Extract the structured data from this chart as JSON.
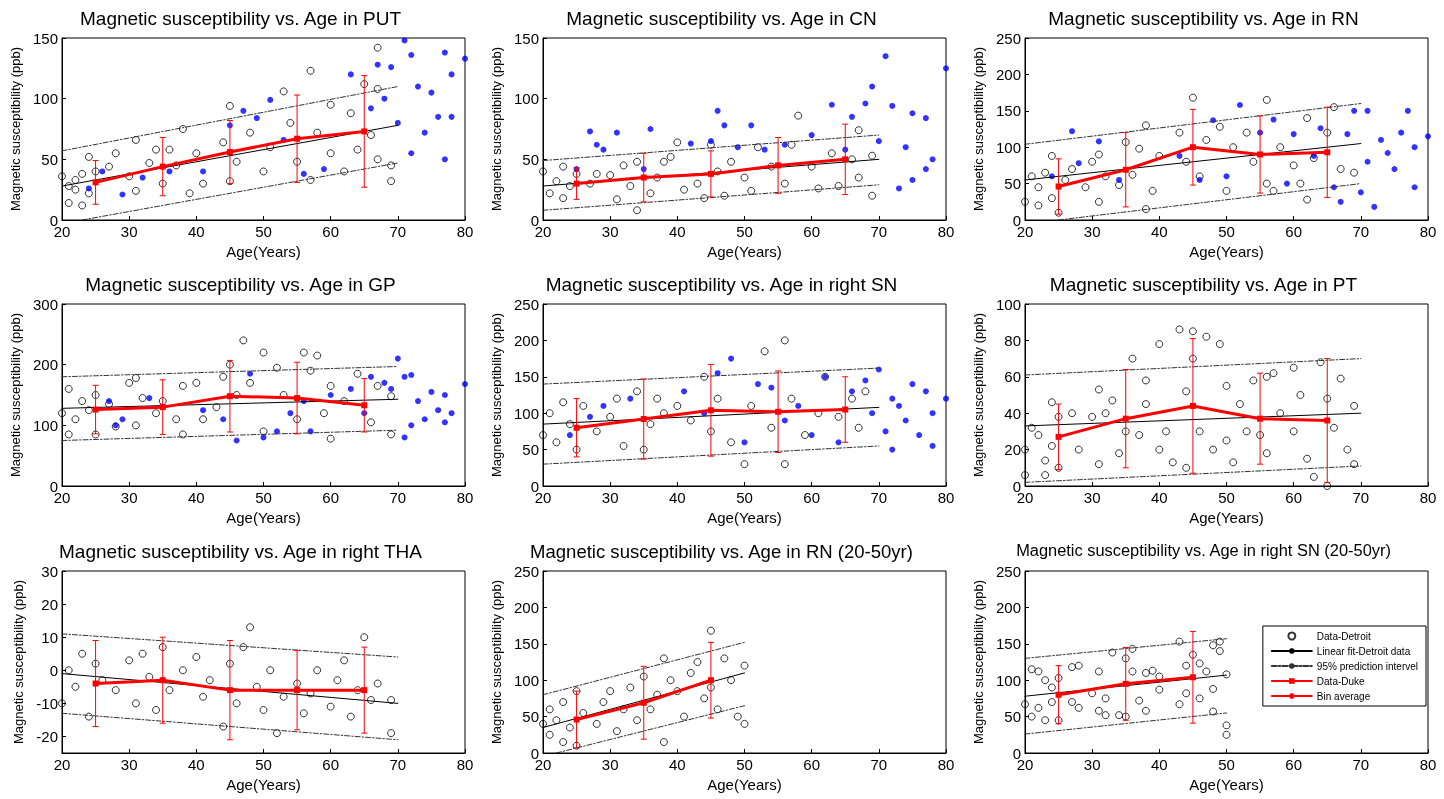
{
  "chart_data": [
    {
      "type": "scatter",
      "title": "Magnetic susceptibility vs. Age in PUT",
      "xlabel": "Age(Years)",
      "ylabel": "Magnetic susceptibility (ppb)",
      "xlim": [
        20,
        80
      ],
      "xticks": [
        20,
        30,
        40,
        50,
        60,
        70,
        80
      ],
      "ylim": [
        0,
        150
      ],
      "yticks": [
        0,
        50,
        100,
        150
      ],
      "grid": false,
      "legend": false,
      "series": [
        {
          "type": "scatter",
          "marker": "circle",
          "color": "#000000",
          "x": [
            20,
            21,
            21,
            22,
            22,
            23,
            23,
            24,
            24,
            25,
            27,
            28,
            30,
            31,
            31,
            33,
            34,
            35,
            36,
            37,
            38,
            39,
            40,
            41,
            44,
            45,
            45,
            46,
            48,
            50,
            51,
            53,
            54,
            55,
            57,
            57,
            58,
            60,
            60,
            62,
            63,
            64,
            65,
            66,
            67,
            67,
            67,
            69,
            69
          ],
          "values": [
            36,
            28,
            14,
            25,
            33,
            12,
            38,
            52,
            22,
            40,
            44,
            55,
            36,
            66,
            24,
            47,
            58,
            30,
            58,
            45,
            75,
            22,
            55,
            30,
            64,
            94,
            32,
            48,
            72,
            40,
            60,
            106,
            80,
            48,
            123,
            33,
            72,
            95,
            55,
            40,
            88,
            58,
            112,
            70,
            142,
            108,
            50,
            45,
            32
          ]
        },
        {
          "type": "scatter",
          "marker": "circle",
          "color": "#0000ff",
          "x": [
            24,
            26,
            29,
            32,
            36,
            41,
            45,
            47,
            49,
            51,
            53,
            56,
            59,
            63,
            66,
            67,
            68,
            69,
            70,
            71,
            72,
            72,
            73,
            74,
            75,
            76,
            77,
            77,
            78,
            78,
            80
          ],
          "values": [
            26,
            40,
            21,
            35,
            40,
            40,
            78,
            90,
            84,
            99,
            66,
            38,
            42,
            120,
            92,
            128,
            100,
            126,
            80,
            148,
            136,
            55,
            110,
            72,
            105,
            85,
            138,
            50,
            120,
            85,
            133
          ]
        },
        {
          "type": "line",
          "marker": "none",
          "line_style": "solid",
          "color": "#000000",
          "x": [
            20,
            70
          ],
          "values": [
            28,
            78
          ]
        },
        {
          "type": "line",
          "marker": "none",
          "line_style": "dashed",
          "color": "#333333",
          "x": [
            20,
            70
          ],
          "values": [
            57,
            110
          ]
        },
        {
          "type": "line",
          "marker": "none",
          "line_style": "dashed",
          "color": "#333333",
          "x": [
            23,
            70
          ],
          "values": [
            0,
            47
          ]
        },
        {
          "type": "line",
          "marker": "square",
          "line_style": "solid",
          "color": "#ff0000",
          "x": [
            25,
            35,
            45,
            55,
            65
          ],
          "values": [
            31,
            44,
            56,
            67,
            73
          ],
          "errors": [
            18,
            24,
            26,
            36,
            46
          ]
        }
      ]
    },
    {
      "type": "scatter",
      "title": "Magnetic susceptibility vs. Age in CN",
      "xlabel": "Age(Years)",
      "ylabel": "Magnetic susceptibility (ppb)",
      "xlim": [
        20,
        80
      ],
      "xticks": [
        20,
        30,
        40,
        50,
        60,
        70,
        80
      ],
      "ylim": [
        0,
        150
      ],
      "yticks": [
        0,
        50,
        100,
        150
      ],
      "grid": false,
      "legend": false,
      "series": [
        {
          "type": "scatter",
          "marker": "circle",
          "color": "#000000",
          "x": [
            20,
            21,
            22,
            23,
            23,
            24,
            25,
            27,
            28,
            30,
            31,
            32,
            33,
            34,
            34,
            36,
            37,
            38,
            39,
            40,
            41,
            43,
            44,
            45,
            46,
            47,
            48,
            50,
            51,
            52,
            54,
            56,
            57,
            58,
            60,
            61,
            63,
            64,
            66,
            67,
            67,
            69,
            69
          ],
          "values": [
            40,
            22,
            32,
            44,
            18,
            28,
            38,
            30,
            38,
            37,
            17,
            45,
            28,
            8,
            48,
            22,
            35,
            48,
            52,
            64,
            25,
            30,
            18,
            62,
            40,
            20,
            48,
            35,
            24,
            60,
            44,
            30,
            62,
            86,
            44,
            26,
            55,
            28,
            50,
            74,
            35,
            20,
            53
          ]
        },
        {
          "type": "scatter",
          "marker": "circle",
          "color": "#0000ff",
          "x": [
            25,
            27,
            28,
            29,
            31,
            35,
            36,
            42,
            45,
            46,
            47,
            49,
            51,
            53,
            56,
            60,
            63,
            65,
            66,
            68,
            69,
            70,
            71,
            72,
            73,
            74,
            75,
            75,
            77,
            77,
            78,
            80
          ],
          "values": [
            42,
            73,
            62,
            58,
            72,
            42,
            75,
            63,
            65,
            90,
            78,
            60,
            78,
            58,
            62,
            70,
            95,
            58,
            85,
            96,
            110,
            65,
            135,
            94,
            26,
            60,
            88,
            33,
            42,
            84,
            50,
            125
          ]
        },
        {
          "type": "line",
          "marker": "none",
          "line_style": "solid",
          "color": "#000000",
          "x": [
            20,
            70
          ],
          "values": [
            28,
            50
          ]
        },
        {
          "type": "line",
          "marker": "none",
          "line_style": "dashed",
          "color": "#333333",
          "x": [
            20,
            70
          ],
          "values": [
            49,
            70
          ]
        },
        {
          "type": "line",
          "marker": "none",
          "line_style": "dashed",
          "color": "#333333",
          "x": [
            20,
            70
          ],
          "values": [
            8,
            29
          ]
        },
        {
          "type": "line",
          "marker": "square",
          "line_style": "solid",
          "color": "#ff0000",
          "x": [
            25,
            35,
            45,
            55,
            65
          ],
          "values": [
            30,
            35,
            38,
            45,
            50
          ],
          "errors": [
            13,
            20,
            19,
            23,
            29
          ]
        }
      ]
    },
    {
      "type": "scatter",
      "title": "Magnetic susceptibility vs. Age in RN",
      "xlabel": "Age(Years)",
      "ylabel": "Magnetic susceptibility (ppb)",
      "xlim": [
        20,
        80
      ],
      "xticks": [
        20,
        30,
        40,
        50,
        60,
        70,
        80
      ],
      "ylim": [
        0,
        250
      ],
      "yticks": [
        0,
        50,
        100,
        150,
        200,
        250
      ],
      "grid": false,
      "legend": false,
      "series": [
        {
          "type": "scatter",
          "marker": "circle",
          "color": "#000000",
          "x": [
            20,
            21,
            22,
            22,
            23,
            24,
            24,
            25,
            26,
            27,
            29,
            30,
            31,
            31,
            32,
            34,
            35,
            36,
            37,
            38,
            38,
            39,
            40,
            43,
            44,
            45,
            46,
            47,
            49,
            50,
            51,
            53,
            54,
            56,
            56,
            57,
            58,
            60,
            61,
            62,
            62,
            63,
            65,
            66,
            67,
            69
          ],
          "values": [
            25,
            60,
            45,
            20,
            65,
            30,
            88,
            10,
            55,
            70,
            45,
            80,
            90,
            25,
            60,
            48,
            107,
            62,
            98,
            130,
            15,
            40,
            88,
            120,
            80,
            168,
            60,
            110,
            128,
            40,
            100,
            120,
            80,
            165,
            50,
            40,
            100,
            75,
            50,
            28,
            140,
            85,
            120,
            155,
            70,
            65
          ]
        },
        {
          "type": "scatter",
          "marker": "circle",
          "color": "#0000ff",
          "x": [
            24,
            27,
            28,
            31,
            34,
            43,
            46,
            48,
            50,
            52,
            55,
            57,
            59,
            60,
            63,
            64,
            66,
            67,
            68,
            69,
            70,
            71,
            71,
            72,
            73,
            74,
            75,
            76,
            77,
            78,
            78,
            80
          ],
          "values": [
            60,
            122,
            78,
            108,
            55,
            88,
            55,
            137,
            60,
            158,
            120,
            138,
            50,
            118,
            88,
            126,
            45,
            25,
            118,
            150,
            38,
            80,
            150,
            18,
            110,
            92,
            70,
            120,
            150,
            100,
            45,
            115
          ]
        },
        {
          "type": "line",
          "marker": "none",
          "line_style": "solid",
          "color": "#000000",
          "x": [
            20,
            70
          ],
          "values": [
            55,
            105
          ]
        },
        {
          "type": "line",
          "marker": "none",
          "line_style": "dashed",
          "color": "#333333",
          "x": [
            20,
            70
          ],
          "values": [
            104,
            160
          ]
        },
        {
          "type": "line",
          "marker": "none",
          "line_style": "dashed",
          "color": "#333333",
          "x": [
            25,
            70
          ],
          "values": [
            0,
            50
          ]
        },
        {
          "type": "line",
          "marker": "square",
          "line_style": "solid",
          "color": "#ff0000",
          "x": [
            25,
            35,
            45,
            55,
            65
          ],
          "values": [
            46,
            69,
            100,
            90,
            93
          ],
          "errors": [
            38,
            51,
            52,
            53,
            62
          ]
        }
      ]
    },
    {
      "type": "scatter",
      "title": "Magnetic susceptibility vs. Age in GP",
      "xlabel": "Age(Years)",
      "ylabel": "Magnetic susceptibility (ppb)",
      "xlim": [
        20,
        80
      ],
      "xticks": [
        20,
        30,
        40,
        50,
        60,
        70,
        80
      ],
      "ylim": [
        0,
        300
      ],
      "yticks": [
        0,
        100,
        200,
        300
      ],
      "grid": false,
      "legend": false,
      "series": [
        {
          "type": "scatter",
          "marker": "circle",
          "color": "#000000",
          "x": [
            20,
            21,
            21,
            22,
            23,
            24,
            25,
            25,
            27,
            28,
            30,
            31,
            31,
            32,
            34,
            35,
            37,
            38,
            38,
            40,
            41,
            43,
            44,
            45,
            46,
            47,
            48,
            50,
            50,
            52,
            53,
            55,
            56,
            57,
            58,
            59,
            60,
            60,
            62,
            64,
            66,
            67,
            69,
            69
          ],
          "values": [
            120,
            85,
            160,
            110,
            140,
            125,
            85,
            150,
            135,
            98,
            170,
            178,
            100,
            145,
            120,
            140,
            110,
            165,
            85,
            170,
            110,
            130,
            180,
            200,
            150,
            240,
            170,
            220,
            90,
            195,
            150,
            110,
            220,
            190,
            215,
            120,
            165,
            78,
            140,
            185,
            105,
            165,
            148,
            85
          ]
        },
        {
          "type": "scatter",
          "marker": "circle",
          "color": "#0000ff",
          "x": [
            27,
            28,
            29,
            33,
            41,
            44,
            46,
            48,
            50,
            52,
            54,
            56,
            57,
            60,
            63,
            65,
            66,
            68,
            69,
            70,
            71,
            71,
            72,
            72,
            73,
            74,
            75,
            76,
            77,
            77,
            78,
            80
          ],
          "values": [
            140,
            100,
            110,
            145,
            125,
            110,
            75,
            185,
            80,
            90,
            120,
            140,
            90,
            150,
            160,
            120,
            180,
            170,
            160,
            210,
            80,
            180,
            100,
            183,
            140,
            110,
            155,
            125,
            105,
            150,
            120,
            168
          ]
        },
        {
          "type": "line",
          "marker": "none",
          "line_style": "solid",
          "color": "#000000",
          "x": [
            20,
            70
          ],
          "values": [
            128,
            143
          ]
        },
        {
          "type": "line",
          "marker": "none",
          "line_style": "dashed",
          "color": "#333333",
          "x": [
            20,
            70
          ],
          "values": [
            180,
            197
          ]
        },
        {
          "type": "line",
          "marker": "none",
          "line_style": "dashed",
          "color": "#333333",
          "x": [
            20,
            70
          ],
          "values": [
            75,
            92
          ]
        },
        {
          "type": "line",
          "marker": "square",
          "line_style": "solid",
          "color": "#ff0000",
          "x": [
            25,
            35,
            45,
            55,
            65
          ],
          "values": [
            126,
            130,
            148,
            145,
            133
          ],
          "errors": [
            40,
            45,
            59,
            59,
            44
          ]
        }
      ]
    },
    {
      "type": "scatter",
      "title": "Magnetic susceptibility vs. Age in right SN",
      "xlabel": "Age(Years)",
      "ylabel": "Magnetic susceptibility (ppb)",
      "xlim": [
        20,
        80
      ],
      "xticks": [
        20,
        30,
        40,
        50,
        60,
        70,
        80
      ],
      "ylim": [
        0,
        250
      ],
      "yticks": [
        0,
        50,
        100,
        150,
        200,
        250
      ],
      "grid": false,
      "legend": false,
      "series": [
        {
          "type": "scatter",
          "marker": "circle",
          "color": "#000000",
          "x": [
            20,
            21,
            22,
            23,
            24,
            25,
            26,
            28,
            30,
            31,
            32,
            34,
            35,
            36,
            37,
            38,
            40,
            42,
            44,
            45,
            46,
            48,
            50,
            51,
            53,
            54,
            56,
            56,
            57,
            59,
            61,
            62,
            64,
            66,
            67,
            68
          ],
          "values": [
            70,
            100,
            60,
            115,
            85,
            50,
            110,
            75,
            95,
            120,
            55,
            130,
            50,
            85,
            120,
            100,
            110,
            90,
            150,
            75,
            120,
            60,
            30,
            110,
            185,
            80,
            200,
            30,
            120,
            70,
            100,
            150,
            95,
            120,
            80,
            130
          ]
        },
        {
          "type": "scatter",
          "marker": "circle",
          "color": "#0000ff",
          "x": [
            24,
            27,
            29,
            33,
            41,
            44,
            46,
            48,
            50,
            52,
            54,
            56,
            58,
            60,
            62,
            64,
            66,
            68,
            69,
            70,
            71,
            72,
            72,
            73,
            74,
            75,
            76,
            77,
            78,
            78,
            80
          ],
          "values": [
            70,
            95,
            110,
            120,
            130,
            100,
            155,
            175,
            60,
            140,
            135,
            90,
            110,
            70,
            150,
            60,
            130,
            145,
            100,
            160,
            75,
            120,
            50,
            110,
            90,
            140,
            70,
            130,
            100,
            55,
            120
          ]
        },
        {
          "type": "line",
          "marker": "none",
          "line_style": "solid",
          "color": "#000000",
          "x": [
            20,
            70
          ],
          "values": [
            85,
            108
          ]
        },
        {
          "type": "line",
          "marker": "none",
          "line_style": "dashed",
          "color": "#333333",
          "x": [
            20,
            70
          ],
          "values": [
            140,
            162
          ]
        },
        {
          "type": "line",
          "marker": "none",
          "line_style": "dashed",
          "color": "#333333",
          "x": [
            20,
            70
          ],
          "values": [
            30,
            55
          ]
        },
        {
          "type": "line",
          "marker": "square",
          "line_style": "solid",
          "color": "#ff0000",
          "x": [
            25,
            35,
            45,
            55,
            65
          ],
          "values": [
            80,
            92,
            104,
            102,
            105
          ],
          "errors": [
            40,
            55,
            63,
            56,
            45
          ]
        }
      ]
    },
    {
      "type": "scatter",
      "title": "Magnetic susceptibility vs. Age in PT",
      "xlabel": "Age(Years)",
      "ylabel": "Magnetic susceptibility (ppb)",
      "xlim": [
        20,
        80
      ],
      "xticks": [
        20,
        30,
        40,
        50,
        60,
        70,
        80
      ],
      "ylim": [
        0,
        100
      ],
      "yticks": [
        0,
        20,
        40,
        60,
        80,
        100
      ],
      "grid": false,
      "legend": false,
      "series": [
        {
          "type": "scatter",
          "marker": "circle",
          "color": "#000000",
          "x": [
            20,
            20,
            21,
            22,
            23,
            23,
            24,
            24,
            25,
            25,
            27,
            28,
            30,
            31,
            31,
            32,
            33,
            34,
            35,
            36,
            37,
            38,
            38,
            40,
            40,
            41,
            42,
            43,
            44,
            44,
            45,
            45,
            46,
            47,
            48,
            49,
            50,
            50,
            51,
            52,
            53,
            54,
            55,
            56,
            56,
            57,
            58,
            60,
            60,
            61,
            62,
            63,
            64,
            65,
            65,
            66,
            67,
            68,
            69,
            69
          ],
          "values": [
            6,
            20,
            32,
            28,
            6,
            14,
            46,
            22,
            10,
            38,
            40,
            20,
            38,
            53,
            12,
            40,
            47,
            18,
            30,
            70,
            28,
            58,
            45,
            78,
            20,
            30,
            13,
            86,
            52,
            10,
            85,
            70,
            30,
            82,
            20,
            78,
            55,
            25,
            13,
            45,
            30,
            58,
            28,
            60,
            18,
            62,
            40,
            65,
            30,
            50,
            15,
            5,
            68,
            0,
            48,
            32,
            59,
            20,
            44,
            12
          ]
        },
        {
          "type": "line",
          "marker": "none",
          "line_style": "solid",
          "color": "#000000",
          "x": [
            20,
            70
          ],
          "values": [
            33,
            40
          ]
        },
        {
          "type": "line",
          "marker": "none",
          "line_style": "dashed",
          "color": "#333333",
          "x": [
            20,
            70
          ],
          "values": [
            61,
            70
          ]
        },
        {
          "type": "line",
          "marker": "none",
          "line_style": "dashed",
          "color": "#333333",
          "x": [
            20,
            70
          ],
          "values": [
            2,
            11
          ]
        },
        {
          "type": "line",
          "marker": "square",
          "line_style": "solid",
          "color": "#ff0000",
          "x": [
            25,
            35,
            45,
            55,
            65
          ],
          "values": [
            27,
            37,
            44,
            37,
            36
          ],
          "errors": [
            18,
            27,
            37,
            25,
            34
          ]
        }
      ]
    },
    {
      "type": "scatter",
      "title": "Magnetic susceptibility vs. Age in right THA",
      "xlabel": "Age(Years)",
      "ylabel": "Magnetic susceptibility (ppb)",
      "xlim": [
        20,
        80
      ],
      "xticks": [
        20,
        30,
        40,
        50,
        60,
        70,
        80
      ],
      "ylim": [
        -25,
        30
      ],
      "yticks": [
        -20,
        -10,
        0,
        10,
        20,
        30
      ],
      "grid": false,
      "legend": false,
      "series": [
        {
          "type": "scatter",
          "marker": "circle",
          "color": "#000000",
          "x": [
            20,
            21,
            22,
            23,
            24,
            25,
            26,
            28,
            30,
            31,
            32,
            33,
            34,
            35,
            36,
            38,
            40,
            41,
            42,
            44,
            45,
            46,
            47,
            48,
            49,
            50,
            51,
            52,
            53,
            55,
            56,
            57,
            58,
            60,
            61,
            62,
            63,
            64,
            65,
            66,
            67,
            69,
            69
          ],
          "values": [
            -10,
            0,
            -5,
            5,
            -14,
            2,
            -3,
            -6,
            3,
            -10,
            5,
            -2,
            -12,
            7,
            -6,
            0,
            4,
            -8,
            -3,
            -17,
            2,
            -10,
            7,
            13,
            -5,
            -12,
            0,
            -19,
            -8,
            -4,
            -13,
            -7,
            0,
            -11,
            -3,
            3,
            -14,
            -6,
            10,
            -9,
            -4,
            -19,
            -9
          ]
        },
        {
          "type": "line",
          "marker": "none",
          "line_style": "solid",
          "color": "#000000",
          "x": [
            20,
            70
          ],
          "values": [
            -1,
            -10
          ]
        },
        {
          "type": "line",
          "marker": "none",
          "line_style": "dashed",
          "color": "#333333",
          "x": [
            20,
            70
          ],
          "values": [
            11,
            4
          ]
        },
        {
          "type": "line",
          "marker": "none",
          "line_style": "dashed",
          "color": "#333333",
          "x": [
            20,
            70
          ],
          "values": [
            -13,
            -21
          ]
        },
        {
          "type": "line",
          "marker": "square",
          "line_style": "solid",
          "color": "#ff0000",
          "x": [
            25,
            35,
            45,
            55,
            65
          ],
          "values": [
            -4,
            -3,
            -6,
            -6,
            -6
          ],
          "errors": [
            13,
            13,
            15,
            12,
            13
          ]
        }
      ]
    },
    {
      "type": "scatter",
      "title": "Magnetic susceptibility vs. Age in RN (20-50yr)",
      "xlabel": "Age(Years)",
      "ylabel": "Magnetic susceptibility (ppb)",
      "xlim": [
        20,
        80
      ],
      "xticks": [
        20,
        30,
        40,
        50,
        60,
        70,
        80
      ],
      "ylim": [
        0,
        250
      ],
      "yticks": [
        0,
        50,
        100,
        150,
        200,
        250
      ],
      "grid": false,
      "legend": false,
      "series": [
        {
          "type": "scatter",
          "marker": "circle",
          "color": "#000000",
          "x": [
            20,
            21,
            21,
            22,
            23,
            23,
            24,
            25,
            25,
            26,
            28,
            29,
            30,
            31,
            32,
            33,
            34,
            35,
            36,
            37,
            38,
            38,
            39,
            40,
            41,
            42,
            43,
            44,
            45,
            45,
            46,
            47,
            48,
            49,
            50,
            50
          ],
          "values": [
            40,
            60,
            25,
            45,
            70,
            15,
            35,
            10,
            85,
            55,
            40,
            70,
            85,
            30,
            60,
            90,
            45,
            105,
            60,
            80,
            130,
            15,
            100,
            85,
            50,
            110,
            125,
            75,
            168,
            90,
            60,
            130,
            100,
            50,
            120,
            40
          ]
        },
        {
          "type": "line",
          "marker": "none",
          "line_style": "solid",
          "color": "#000000",
          "x": [
            20,
            50
          ],
          "values": [
            35,
            110
          ]
        },
        {
          "type": "line",
          "marker": "none",
          "line_style": "dashed",
          "color": "#333333",
          "x": [
            20,
            50
          ],
          "values": [
            80,
            152
          ]
        },
        {
          "type": "line",
          "marker": "none",
          "line_style": "dashed",
          "color": "#333333",
          "x": [
            22,
            50
          ],
          "values": [
            0,
            65
          ]
        },
        {
          "type": "line",
          "marker": "square",
          "line_style": "solid",
          "color": "#ff0000",
          "x": [
            25,
            35,
            45
          ],
          "values": [
            46,
            69,
            100
          ],
          "errors": [
            39,
            50,
            52
          ]
        }
      ]
    },
    {
      "type": "scatter",
      "title": "Magnetic susceptibility vs. Age in right SN (20-50yr)",
      "xlabel": "Age(Years)",
      "ylabel": "Magnetic susceptibility (ppb)",
      "xlim": [
        20,
        80
      ],
      "xticks": [
        20,
        30,
        40,
        50,
        60,
        70,
        80
      ],
      "ylim": [
        0,
        250
      ],
      "yticks": [
        0,
        50,
        100,
        150,
        200,
        250
      ],
      "grid": false,
      "legend": "right",
      "series": [
        {
          "type": "scatter",
          "name": "Data-Detroit",
          "marker": "circle",
          "color": "#000000",
          "x": [
            20,
            21,
            21,
            22,
            22,
            23,
            23,
            24,
            24,
            25,
            25,
            27,
            27,
            28,
            28,
            30,
            31,
            31,
            32,
            32,
            33,
            34,
            35,
            35,
            36,
            36,
            37,
            38,
            38,
            39,
            40,
            40,
            43,
            43,
            44,
            44,
            45,
            46,
            46,
            47,
            48,
            48,
            48,
            49,
            49,
            50,
            50,
            50
          ],
          "values": [
            67,
            115,
            50,
            112,
            62,
            100,
            45,
            90,
            70,
            45,
            103,
            118,
            70,
            120,
            62,
            82,
            112,
            58,
            52,
            75,
            138,
            52,
            130,
            50,
            143,
            112,
            72,
            110,
            58,
            113,
            87,
            105,
            153,
            67,
            120,
            82,
            135,
            123,
            75,
            112,
            88,
            148,
            57,
            153,
            140,
            108,
            38,
            25
          ]
        },
        {
          "type": "line",
          "name": "Linear fit-Detroit data",
          "marker": "none",
          "line_style": "solid",
          "color": "#000000",
          "x": [
            20,
            50
          ],
          "values": [
            78,
            107
          ]
        },
        {
          "type": "line",
          "name": "95% prediction intervel",
          "marker": "none",
          "line_style": "dashed",
          "color": "#333333",
          "x": [
            20,
            50
          ],
          "values": [
            130,
            157
          ]
        },
        {
          "type": "line",
          "marker": "none",
          "line_style": "dashed",
          "color": "#333333",
          "x": [
            20,
            50
          ],
          "values": [
            26,
            55
          ]
        },
        {
          "type": "line",
          "name": "Data-Duke",
          "marker": "square",
          "line_style": "solid",
          "color": "#ff0000",
          "x": [
            25,
            35,
            45
          ],
          "values": [
            80,
            95,
            104
          ],
          "errors": [
            40,
            50,
            63
          ]
        },
        {
          "type": "line",
          "name": "Bin average",
          "marker": "none",
          "line_style": "solid",
          "color": "#ff0000",
          "values": [
            null,
            null,
            null
          ]
        }
      ]
    }
  ]
}
